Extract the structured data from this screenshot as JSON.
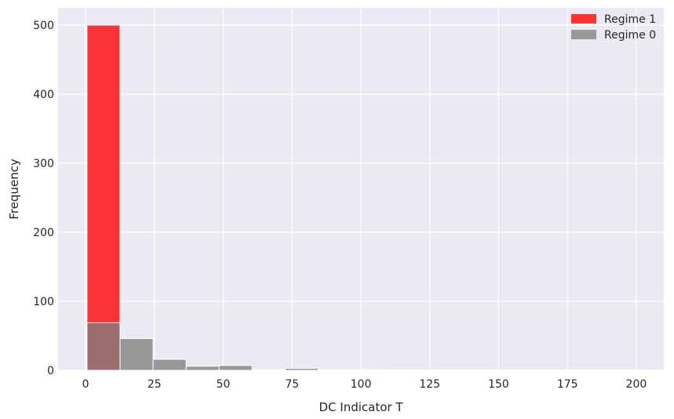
{
  "chart_data": {
    "type": "bar",
    "xlabel": "DC Indicator T",
    "ylabel": "Frequency",
    "xlim": [
      -10,
      210
    ],
    "ylim": [
      0,
      525
    ],
    "xticks": [
      0,
      25,
      50,
      75,
      100,
      125,
      150,
      175,
      200
    ],
    "yticks": [
      0,
      100,
      200,
      300,
      400,
      500
    ],
    "grid": true,
    "legend_position": "top-right",
    "series": [
      {
        "name": "Regime 1",
        "color": "#ff0000",
        "opacity": 0.78,
        "bins": [
          {
            "x0": 0.5,
            "x1": 12.5,
            "count": 500
          }
        ]
      },
      {
        "name": "Regime 0",
        "color": "#808080",
        "opacity": 0.78,
        "bins": [
          {
            "x0": 0.5,
            "x1": 12.5,
            "count": 69
          },
          {
            "x0": 12.5,
            "x1": 24.5,
            "count": 46
          },
          {
            "x0": 24.5,
            "x1": 36.5,
            "count": 16
          },
          {
            "x0": 36.5,
            "x1": 48.5,
            "count": 6
          },
          {
            "x0": 48.5,
            "x1": 60.5,
            "count": 7
          },
          {
            "x0": 60.5,
            "x1": 72.5,
            "count": 1
          },
          {
            "x0": 72.5,
            "x1": 84.5,
            "count": 3
          },
          {
            "x0": 84.5,
            "x1": 96.5,
            "count": 1
          },
          {
            "x0": 96.5,
            "x1": 108.5,
            "count": 1
          },
          {
            "x0": 108.5,
            "x1": 120.5,
            "count": 0.5
          },
          {
            "x0": 120.5,
            "x1": 132.5,
            "count": 0.5
          },
          {
            "x0": 132.5,
            "x1": 144.5,
            "count": 0.5
          },
          {
            "x0": 144.5,
            "x1": 156.5,
            "count": 0.5
          },
          {
            "x0": 156.5,
            "x1": 168.5,
            "count": 0.5
          },
          {
            "x0": 168.5,
            "x1": 180.5,
            "count": 0.5
          },
          {
            "x0": 180.5,
            "x1": 192.5,
            "count": 0.5
          },
          {
            "x0": 192.5,
            "x1": 204.5,
            "count": 0.5
          }
        ]
      }
    ]
  }
}
